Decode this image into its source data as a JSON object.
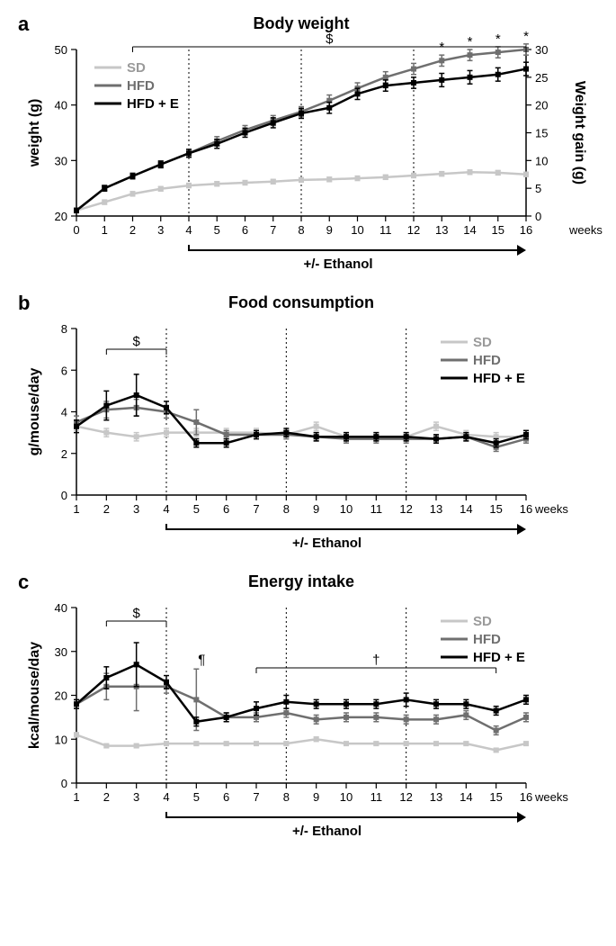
{
  "colors": {
    "sd": "#c7c7c7",
    "hfd": "#6f6f6f",
    "hfde": "#000000",
    "axis": "#000000",
    "bg": "#ffffff"
  },
  "legend": [
    "SD",
    "HFD",
    "HFD + E"
  ],
  "ethanol_label": "+/- Ethanol",
  "weeks_label": "weeks",
  "panels": {
    "a": {
      "letter": "a",
      "title": "Body weight",
      "ylabel": "weight (g)",
      "y2label": "Weight gain (g)",
      "x": [
        0,
        1,
        2,
        3,
        4,
        5,
        6,
        7,
        8,
        9,
        10,
        11,
        12,
        13,
        14,
        15,
        16
      ],
      "xlim": [
        0,
        16
      ],
      "ylim": [
        20,
        50
      ],
      "yticks": [
        20,
        30,
        40,
        50
      ],
      "y2ticks": [
        0,
        5,
        10,
        15,
        20,
        25,
        30
      ],
      "vlines": [
        4,
        8,
        12
      ],
      "eth_start": 4,
      "series": {
        "sd": {
          "y": [
            21,
            22.5,
            24,
            24.9,
            25.5,
            25.8,
            26,
            26.2,
            26.5,
            26.6,
            26.8,
            27,
            27.3,
            27.6,
            27.9,
            27.8,
            27.5
          ],
          "err": [
            0.4,
            0.4,
            0.4,
            0.4,
            0.4,
            0.4,
            0.4,
            0.4,
            0.4,
            0.4,
            0.4,
            0.4,
            0.4,
            0.4,
            0.4,
            0.4,
            0.4
          ]
        },
        "hfd": {
          "y": [
            21,
            25,
            27.2,
            29.3,
            31.3,
            33.5,
            35.5,
            37.2,
            38.8,
            40.8,
            43,
            45,
            46.5,
            48,
            49,
            49.5,
            50
          ],
          "err": [
            0.4,
            0.5,
            0.5,
            0.6,
            0.7,
            0.8,
            0.8,
            0.9,
            0.9,
            1,
            1,
            1,
            1,
            1,
            1,
            1,
            1
          ]
        },
        "hfde": {
          "y": [
            21,
            25,
            27.2,
            29.3,
            31.3,
            33,
            35,
            36.8,
            38.5,
            39.5,
            42,
            43.5,
            44,
            44.5,
            45,
            45.5,
            46.5
          ],
          "err": [
            0.4,
            0.5,
            0.5,
            0.6,
            0.7,
            0.8,
            0.8,
            0.9,
            0.9,
            1,
            1,
            1,
            1,
            1.2,
            1.2,
            1.2,
            1.2
          ]
        }
      },
      "dollar_range": [
        2,
        16
      ],
      "stars": [
        13,
        14,
        15,
        16
      ]
    },
    "b": {
      "letter": "b",
      "title": "Food consumption",
      "ylabel": "g/mouse/day",
      "x": [
        1,
        2,
        3,
        4,
        5,
        6,
        7,
        8,
        9,
        10,
        11,
        12,
        13,
        14,
        15,
        16
      ],
      "xlim": [
        1,
        16
      ],
      "ylim": [
        0,
        8
      ],
      "yticks": [
        0,
        2,
        4,
        6,
        8
      ],
      "vlines": [
        4,
        8,
        12
      ],
      "eth_start": 4,
      "series": {
        "sd": {
          "y": [
            3.3,
            3.0,
            2.8,
            3.0,
            3.0,
            3.0,
            3.0,
            2.9,
            3.3,
            2.8,
            2.8,
            2.8,
            3.3,
            2.9,
            2.8,
            2.8
          ],
          "err": [
            0.2,
            0.2,
            0.2,
            0.2,
            0.2,
            0.2,
            0.2,
            0.2,
            0.2,
            0.2,
            0.2,
            0.2,
            0.2,
            0.2,
            0.2,
            0.2
          ]
        },
        "hfd": {
          "y": [
            3.5,
            4.1,
            4.2,
            4.0,
            3.5,
            2.9,
            2.9,
            2.9,
            2.8,
            2.7,
            2.7,
            2.7,
            2.7,
            2.8,
            2.3,
            2.7
          ],
          "err": [
            0.3,
            0.4,
            0.4,
            0.3,
            0.6,
            0.2,
            0.2,
            0.2,
            0.2,
            0.2,
            0.2,
            0.2,
            0.2,
            0.2,
            0.2,
            0.2
          ]
        },
        "hfde": {
          "y": [
            3.3,
            4.3,
            4.8,
            4.2,
            2.5,
            2.5,
            2.9,
            3.0,
            2.8,
            2.8,
            2.8,
            2.8,
            2.7,
            2.8,
            2.5,
            2.9
          ],
          "err": [
            0.3,
            0.7,
            1.0,
            0.3,
            0.2,
            0.2,
            0.2,
            0.2,
            0.2,
            0.2,
            0.2,
            0.2,
            0.2,
            0.2,
            0.2,
            0.2
          ]
        }
      },
      "dollar_range": [
        2,
        4
      ]
    },
    "c": {
      "letter": "c",
      "title": "Energy intake",
      "ylabel": "kcal/mouse/day",
      "x": [
        1,
        2,
        3,
        4,
        5,
        6,
        7,
        8,
        9,
        10,
        11,
        12,
        13,
        14,
        15,
        16
      ],
      "xlim": [
        1,
        16
      ],
      "ylim": [
        0,
        40
      ],
      "yticks": [
        0,
        10,
        20,
        30,
        40
      ],
      "vlines": [
        4,
        8,
        12
      ],
      "eth_start": 4,
      "series": {
        "sd": {
          "y": [
            11,
            8.5,
            8.5,
            9,
            9,
            9,
            9,
            9,
            10,
            9,
            9,
            9,
            9,
            9,
            7.5,
            9
          ],
          "err": [
            0.5,
            0.4,
            0.4,
            0.4,
            0.4,
            0.4,
            0.4,
            0.4,
            0.5,
            0.4,
            0.4,
            0.4,
            0.4,
            0.4,
            0.4,
            0.4
          ]
        },
        "hfd": {
          "y": [
            18,
            22,
            22,
            22,
            19,
            15,
            15,
            16,
            14.5,
            15,
            15,
            14.5,
            14.5,
            15.5,
            12,
            15
          ],
          "err": [
            1,
            3,
            5.5,
            1.5,
            7,
            1,
            1,
            1,
            1,
            1,
            1,
            1,
            1,
            1,
            1,
            1
          ]
        },
        "hfde": {
          "y": [
            18,
            24,
            27,
            23,
            14,
            15,
            17,
            18.5,
            18,
            18,
            18,
            19,
            18,
            18,
            16.5,
            19
          ],
          "err": [
            1,
            2.5,
            5,
            1.5,
            1,
            1,
            1.5,
            1.5,
            1,
            1,
            1,
            1.5,
            1,
            1,
            1,
            1
          ]
        }
      },
      "dollar_range": [
        2,
        4
      ],
      "pilcrow": 5,
      "dagger_range": [
        7,
        15
      ]
    }
  }
}
